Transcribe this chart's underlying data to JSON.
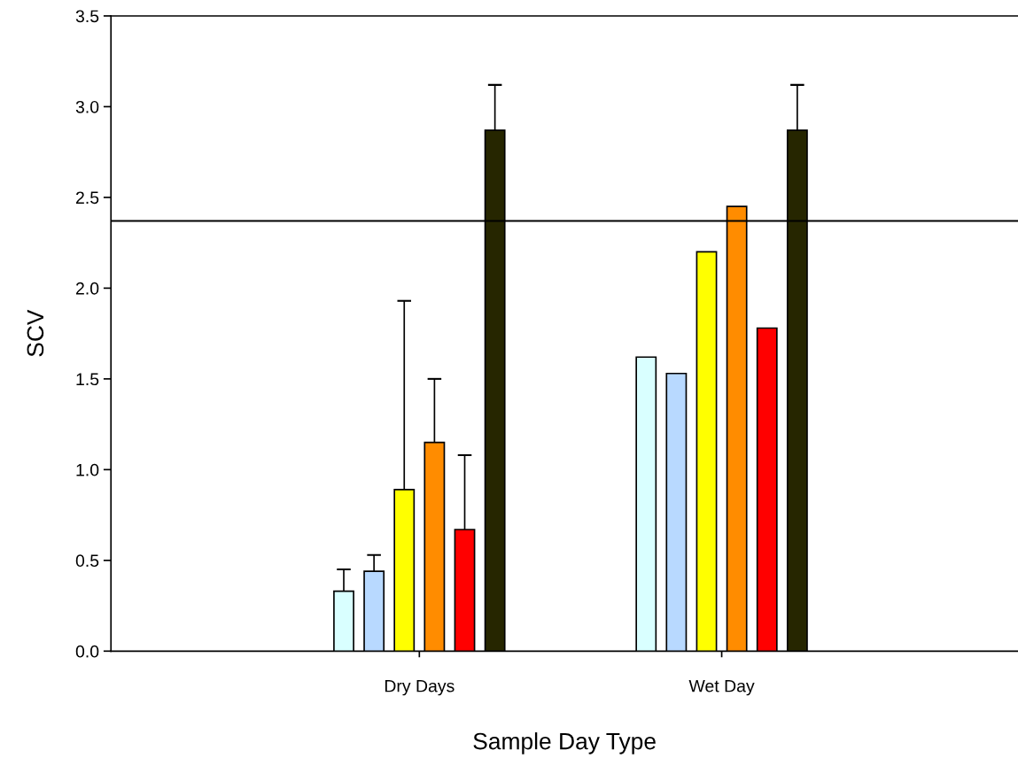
{
  "chart_data": {
    "type": "bar",
    "xlabel": "Sample Day Type",
    "ylabel": "SCV",
    "categories": [
      "Dry Days",
      "Wet Day"
    ],
    "series": [
      {
        "color": "#d9ffff",
        "values": [
          0.33,
          1.62
        ],
        "errors": [
          [
            0.33,
            0.45
          ],
          null
        ]
      },
      {
        "color": "#b8d9ff",
        "values": [
          0.44,
          1.53
        ],
        "errors": [
          [
            0.44,
            0.53
          ],
          null
        ]
      },
      {
        "color": "#ffff00",
        "values": [
          0.89,
          2.2
        ],
        "errors": [
          [
            0.89,
            1.93
          ],
          null
        ]
      },
      {
        "color": "#ff8c00",
        "values": [
          1.15,
          2.45
        ],
        "errors": [
          [
            1.15,
            1.5
          ],
          null
        ]
      },
      {
        "color": "#ff0000",
        "values": [
          0.67,
          1.78
        ],
        "errors": [
          [
            0.67,
            1.08
          ],
          null
        ]
      },
      {
        "color": "#262600",
        "values": [
          2.87,
          2.87
        ],
        "errors": [
          [
            2.87,
            3.12
          ],
          [
            2.87,
            3.12
          ]
        ]
      }
    ],
    "ylim": [
      0,
      3.5
    ],
    "yticks": [
      {
        "value": 0,
        "label": "0.0"
      },
      {
        "value": 0.5,
        "label": "0.5"
      },
      {
        "value": 1,
        "label": "1.0"
      },
      {
        "value": 1.5,
        "label": "1.5"
      },
      {
        "value": 2,
        "label": "2.0"
      },
      {
        "value": 2.5,
        "label": "2.5"
      },
      {
        "value": 3,
        "label": "3.0"
      },
      {
        "value": 3.5,
        "label": "3.5"
      }
    ],
    "ref_lines": [
      {
        "axis": "y",
        "value": 2.37,
        "color": "#000000"
      }
    ],
    "grid": false,
    "legend": false
  }
}
